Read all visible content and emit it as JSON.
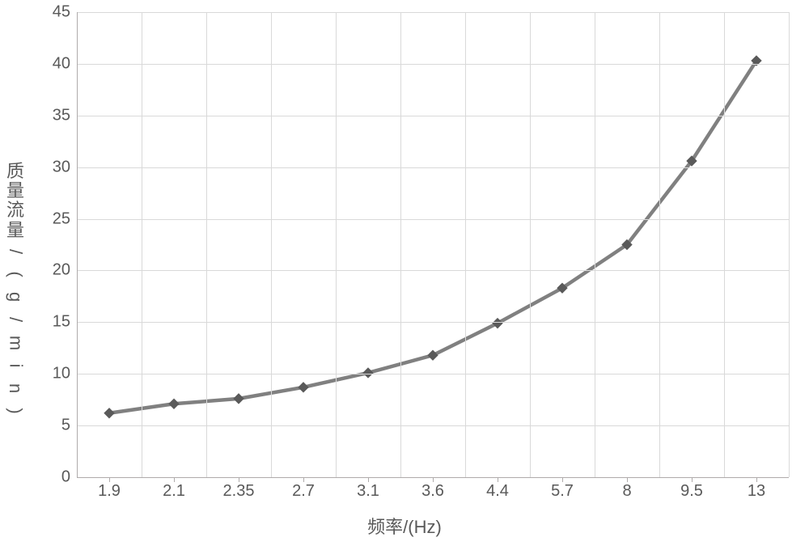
{
  "chart": {
    "type": "line",
    "y_axis_title": "质量流量/(g/min)",
    "x_axis_title": "频率/(Hz)",
    "title_fontsize": 22,
    "tick_fontsize": 20,
    "text_color": "#595959",
    "background_color": "#ffffff",
    "plot_border_color": "#afabab",
    "grid_color_major": "#d9d9d9",
    "axis_line_color": "#afabab",
    "line_color": "#808080",
    "line_width": 4.5,
    "marker_style": "diamond",
    "marker_size": 12,
    "marker_fill": "#5a5a5a",
    "marker_stroke": "#5a5a5a",
    "ylim": [
      0,
      45
    ],
    "ytick_step": 5,
    "yticks": [
      0,
      5,
      10,
      15,
      20,
      25,
      30,
      35,
      40,
      45
    ],
    "x_categories": [
      "1.9",
      "2.1",
      "2.35",
      "2.7",
      "3.1",
      "3.6",
      "4.4",
      "5.7",
      "8",
      "9.5",
      "13"
    ],
    "values": [
      6.2,
      7.1,
      7.6,
      8.7,
      10.1,
      11.8,
      14.9,
      18.3,
      22.5,
      30.6,
      40.3
    ]
  }
}
